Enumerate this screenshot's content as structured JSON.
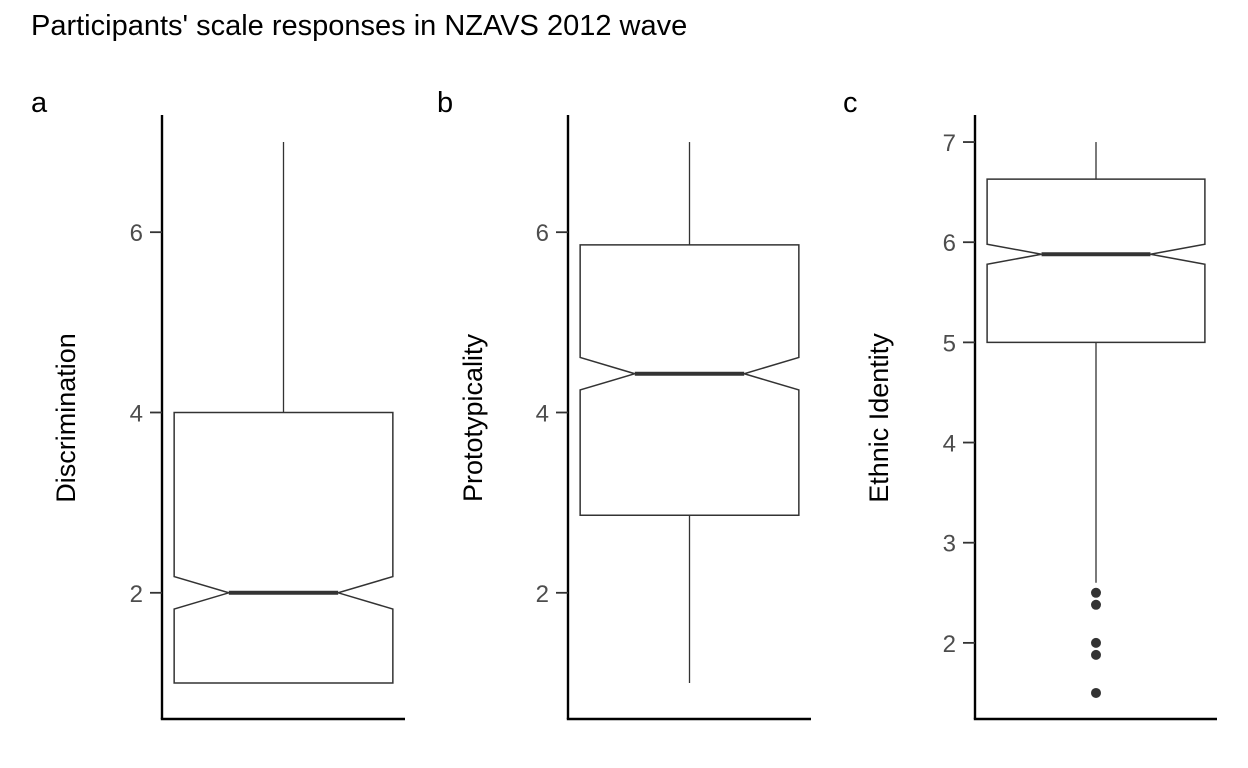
{
  "title": "Participants' scale responses in NZAVS 2012 wave",
  "colors": {
    "axis": "#000000",
    "box": "#333333",
    "tick_label": "#4d4d4d",
    "outlier": "#333333"
  },
  "chart_data": [
    {
      "type": "boxplot",
      "panel_label": "a",
      "ylabel": "Discrimination",
      "ylim": [
        0.6,
        7.3
      ],
      "yticks": [
        2,
        4,
        6
      ],
      "notched": true,
      "box": {
        "min": 1.0,
        "q1": 1.0,
        "median": 2.0,
        "q3": 4.0,
        "max": 7.0,
        "notch_low": 1.82,
        "notch_high": 2.18
      },
      "outliers": []
    },
    {
      "type": "boxplot",
      "panel_label": "b",
      "ylabel": "Prototypicality",
      "ylim": [
        0.6,
        7.3
      ],
      "yticks": [
        2,
        4,
        6
      ],
      "notched": true,
      "box": {
        "min": 1.0,
        "q1": 2.86,
        "median": 4.43,
        "q3": 5.86,
        "max": 7.0,
        "notch_low": 4.25,
        "notch_high": 4.61
      },
      "outliers": []
    },
    {
      "type": "boxplot",
      "panel_label": "c",
      "ylabel": "Ethnic Identity",
      "ylim": [
        1.24,
        7.27
      ],
      "yticks": [
        2,
        3,
        4,
        5,
        6,
        7
      ],
      "notched": true,
      "box": {
        "min": 2.6,
        "q1": 5.0,
        "median": 5.88,
        "q3": 6.63,
        "max": 7.0,
        "notch_low": 5.78,
        "notch_high": 5.98
      },
      "outliers": [
        2.5,
        2.38,
        2.0,
        1.88,
        1.5
      ]
    }
  ]
}
